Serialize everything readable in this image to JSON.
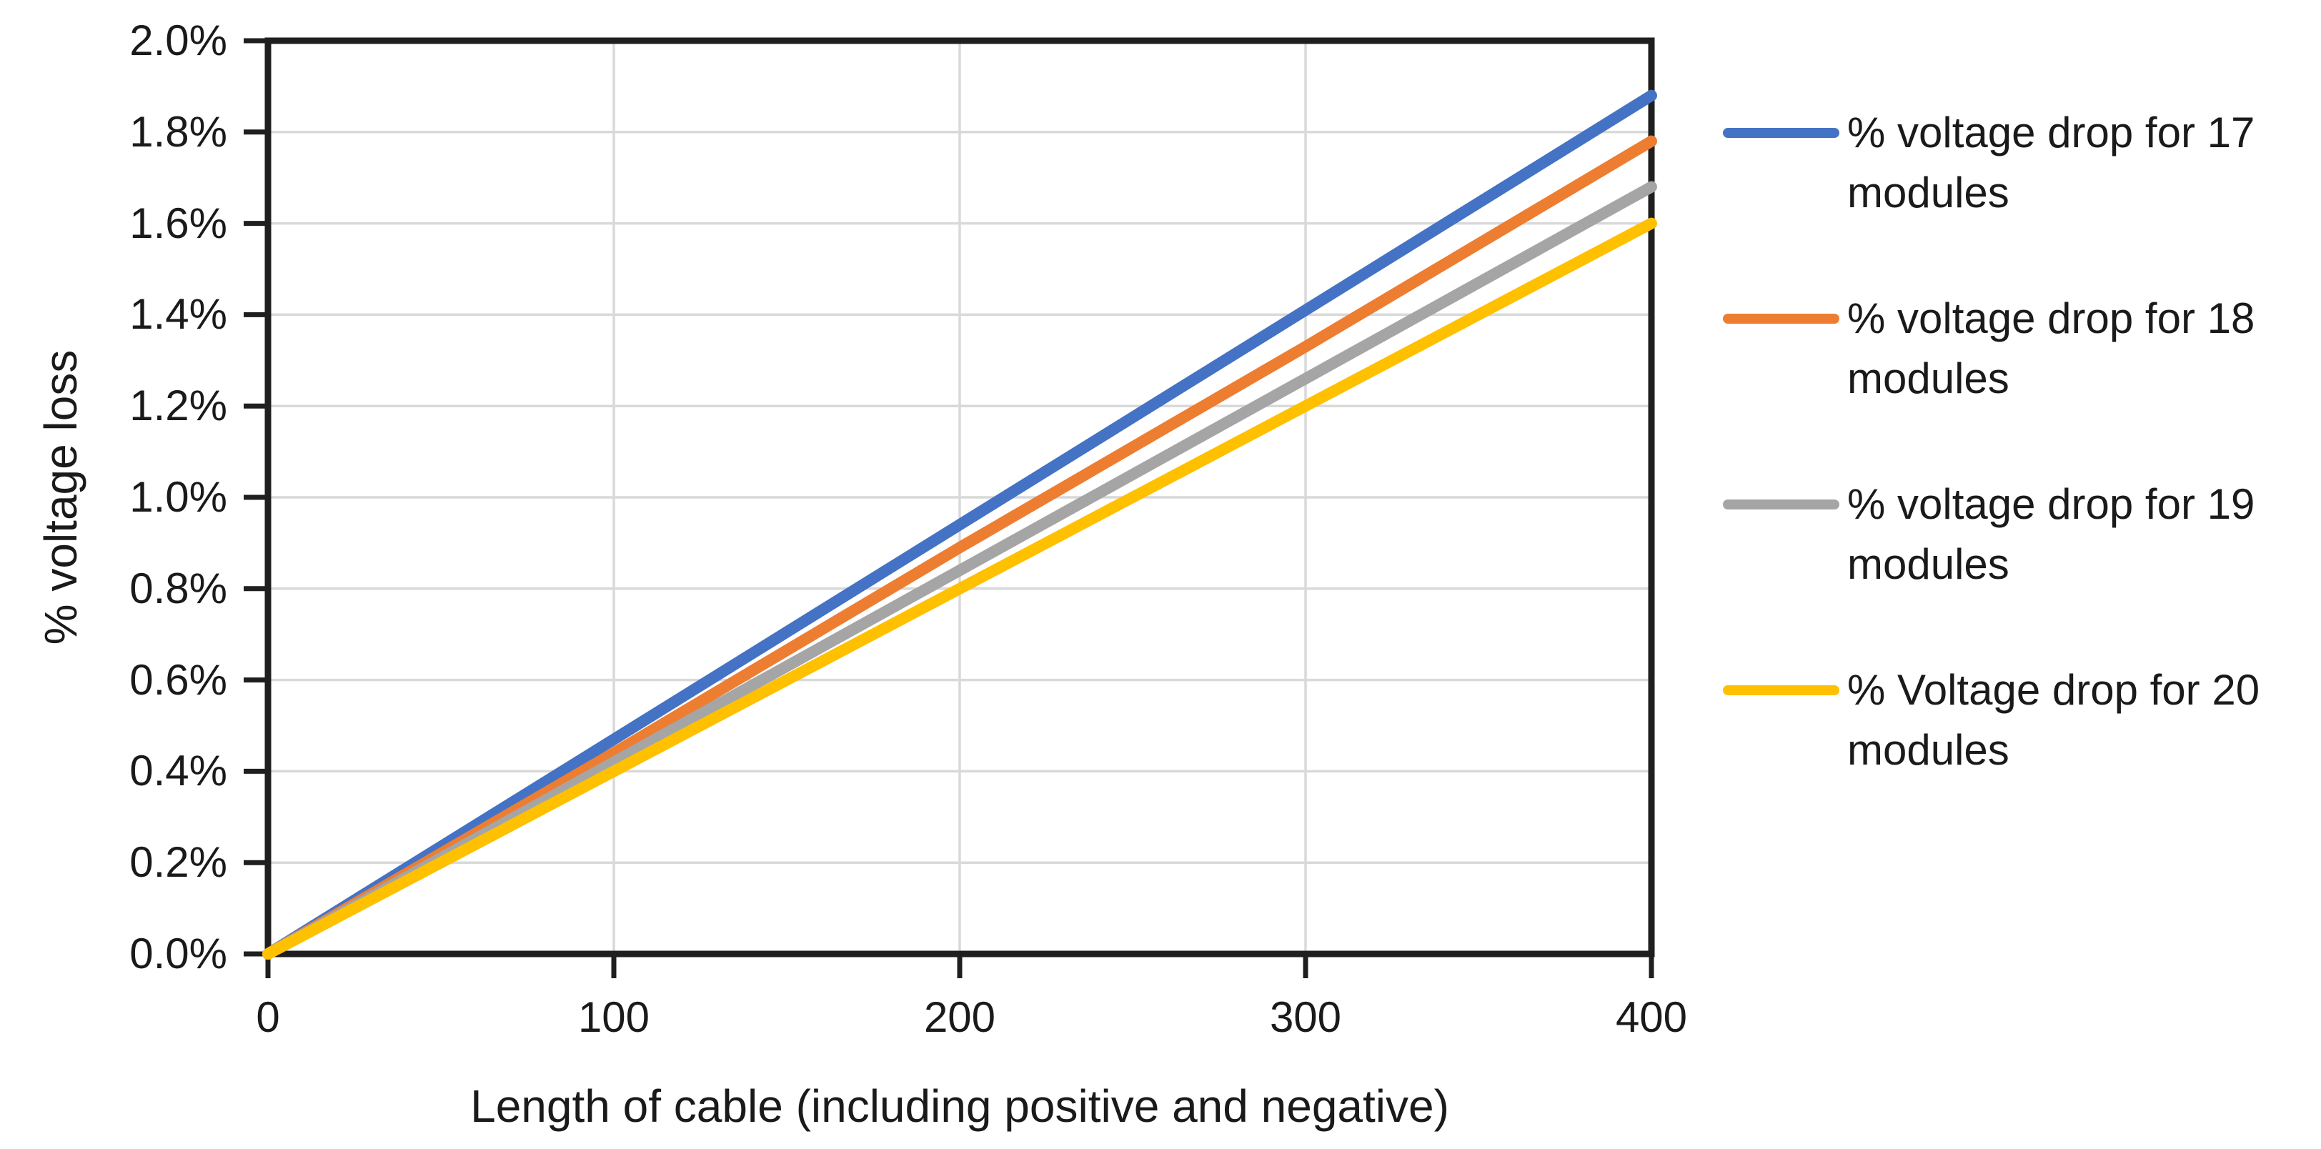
{
  "chart_data": {
    "type": "line",
    "title": "",
    "xlabel": "Length of cable (including positive and negative)",
    "ylabel": "% voltage loss",
    "x": [
      0,
      100,
      200,
      300,
      400
    ],
    "xlim": [
      0,
      400
    ],
    "ylim_pct": [
      0,
      2.0
    ],
    "x_tick_labels": [
      "0",
      "100",
      "200",
      "300",
      "400"
    ],
    "y_tick_labels": [
      "2.0%",
      "1.8%",
      "1.6%",
      "1.4%",
      "1.2%",
      "1.0%",
      "0.8%",
      "0.6%",
      "0.4%",
      "0.2%",
      "0.0%"
    ],
    "grid": "major horizontal and vertical gridlines, light gray",
    "legend_position": "right",
    "series": [
      {
        "name": "% voltage drop for 17 modules",
        "color": "#4472C4",
        "values_pct": [
          0,
          0.47,
          0.94,
          1.41,
          1.88
        ]
      },
      {
        "name": "% voltage drop for 18 modules",
        "color": "#ED7D31",
        "values_pct": [
          0,
          0.44,
          0.89,
          1.33,
          1.78
        ]
      },
      {
        "name": "% voltage drop for 19 modules",
        "color": "#A5A5A5",
        "values_pct": [
          0,
          0.42,
          0.84,
          1.26,
          1.68
        ]
      },
      {
        "name": "% Voltage drop for 20 modules",
        "color": "#FFC000",
        "values_pct": [
          0,
          0.4,
          0.8,
          1.2,
          1.6
        ]
      }
    ]
  },
  "style": {
    "background": "#FFFFFF",
    "axis_color": "#1F1F1F",
    "gridline_color": "#D9D9D9",
    "text_color": "#1A1A1A"
  }
}
